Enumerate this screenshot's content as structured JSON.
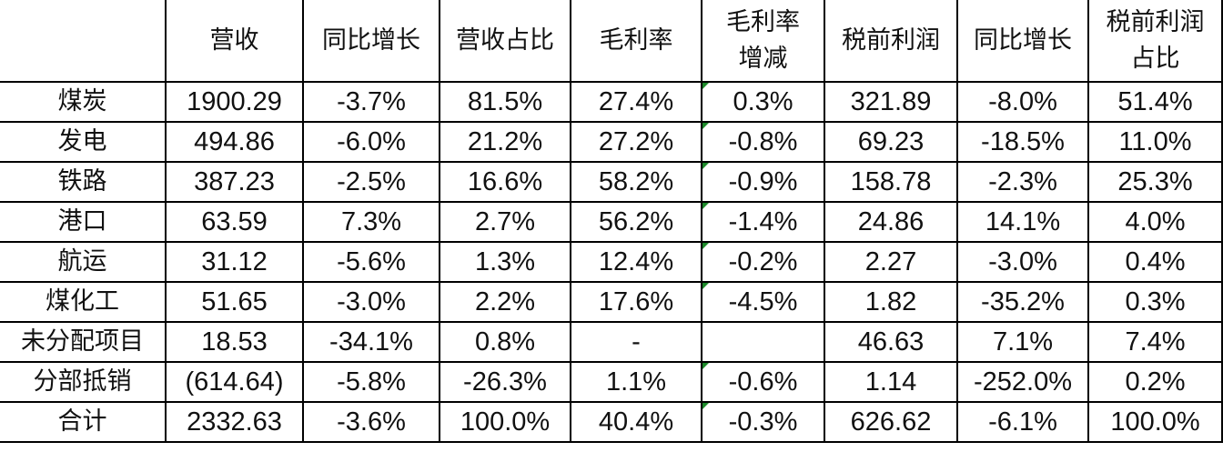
{
  "table": {
    "headers": [
      "",
      "营收",
      "同比增长",
      "营收占比",
      "毛利率",
      "毛利率\n增减",
      "税前利润",
      "同比增长",
      "税前利润\n占比"
    ],
    "rows": [
      [
        "煤炭",
        "1900.29",
        "-3.7%",
        "81.5%",
        "27.4%",
        "0.3%",
        "321.89",
        "-8.0%",
        "51.4%"
      ],
      [
        "发电",
        "494.86",
        "-6.0%",
        "21.2%",
        "27.2%",
        "-0.8%",
        "69.23",
        "-18.5%",
        "11.0%"
      ],
      [
        "铁路",
        "387.23",
        "-2.5%",
        "16.6%",
        "58.2%",
        "-0.9%",
        "158.78",
        "-2.3%",
        "25.3%"
      ],
      [
        "港口",
        "63.59",
        "7.3%",
        "2.7%",
        "56.2%",
        "-1.4%",
        "24.86",
        "14.1%",
        "4.0%"
      ],
      [
        "航运",
        "31.12",
        "-5.6%",
        "1.3%",
        "12.4%",
        "-0.2%",
        "2.27",
        "-3.0%",
        "0.4%"
      ],
      [
        "煤化工",
        "51.65",
        "-3.0%",
        "2.2%",
        "17.6%",
        "-4.5%",
        "1.82",
        "-35.2%",
        "0.3%"
      ],
      [
        "未分配项目",
        "18.53",
        "-34.1%",
        "0.8%",
        "-",
        "",
        "46.63",
        "7.1%",
        "7.4%"
      ],
      [
        "分部抵销",
        "(614.64)",
        "-5.8%",
        "-26.3%",
        "1.1%",
        "-0.6%",
        "1.14",
        "-252.0%",
        "0.2%"
      ],
      [
        "合计",
        "2332.63",
        "-3.6%",
        "100.0%",
        "40.4%",
        "-0.3%",
        "626.62",
        "-6.1%",
        "100.0%"
      ]
    ],
    "indicator_color": "#1d8a2a",
    "indicator_column": 5
  }
}
